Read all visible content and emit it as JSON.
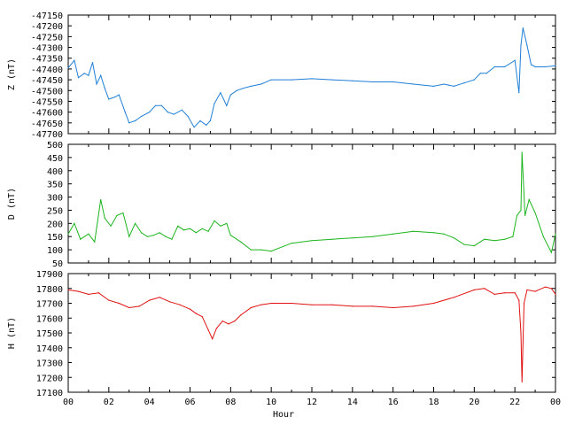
{
  "chart_data": {
    "type": "line",
    "xlabel": "Hour",
    "xlim": [
      0,
      24
    ],
    "x_ticks": [
      "00",
      "02",
      "04",
      "06",
      "08",
      "10",
      "12",
      "14",
      "16",
      "18",
      "20",
      "22",
      "00"
    ],
    "panels": [
      {
        "id": "z",
        "ylabel": "Z (nT)",
        "ylim": [
          -47700,
          -47150
        ],
        "yticks": [
          -47700,
          -47650,
          -47600,
          -47550,
          -47500,
          -47450,
          -47400,
          -47350,
          -47300,
          -47250,
          -47200,
          -47150
        ],
        "color": "#1f7fd6",
        "x": [
          0,
          0.3,
          0.5,
          0.8,
          1.0,
          1.2,
          1.4,
          1.6,
          1.8,
          2.0,
          2.3,
          2.5,
          2.8,
          3.0,
          3.3,
          3.6,
          4.0,
          4.3,
          4.6,
          4.9,
          5.2,
          5.6,
          5.9,
          6.2,
          6.5,
          6.8,
          7.0,
          7.2,
          7.5,
          7.8,
          8.0,
          8.3,
          8.6,
          9.0,
          9.5,
          10.0,
          11.0,
          12.0,
          13.0,
          14.0,
          15.0,
          16.0,
          17.0,
          18.0,
          18.5,
          19.0,
          19.5,
          20.0,
          20.3,
          20.6,
          21.0,
          21.5,
          22.0,
          22.2,
          22.3,
          22.4,
          22.6,
          22.8,
          23.0,
          23.5,
          24.0
        ],
        "values": [
          -47395,
          -47360,
          -47440,
          -47420,
          -47430,
          -47370,
          -47470,
          -47430,
          -47490,
          -47540,
          -47530,
          -47520,
          -47600,
          -47650,
          -47640,
          -47620,
          -47600,
          -47570,
          -47570,
          -47600,
          -47610,
          -47590,
          -47620,
          -47670,
          -47640,
          -47660,
          -47640,
          -47560,
          -47510,
          -47570,
          -47520,
          -47500,
          -47490,
          -47480,
          -47470,
          -47450,
          -47450,
          -47445,
          -47450,
          -47455,
          -47460,
          -47460,
          -47470,
          -47480,
          -47470,
          -47480,
          -47465,
          -47450,
          -47420,
          -47420,
          -47390,
          -47390,
          -47360,
          -47510,
          -47290,
          -47210,
          -47290,
          -47380,
          -47390,
          -47390,
          -47385
        ]
      },
      {
        "id": "d",
        "ylabel": "D (nT)",
        "ylim": [
          50,
          500
        ],
        "yticks": [
          50,
          100,
          150,
          200,
          250,
          300,
          350,
          400,
          450,
          500
        ],
        "color": "#1db41d",
        "x": [
          0,
          0.3,
          0.6,
          1.0,
          1.3,
          1.6,
          1.8,
          2.1,
          2.4,
          2.7,
          3.0,
          3.3,
          3.6,
          3.9,
          4.2,
          4.5,
          4.8,
          5.1,
          5.4,
          5.7,
          6.0,
          6.3,
          6.6,
          6.9,
          7.2,
          7.5,
          7.8,
          8.0,
          8.5,
          9.0,
          9.5,
          10.0,
          11.0,
          12.0,
          13.0,
          14.0,
          15.0,
          16.0,
          17.0,
          18.0,
          18.5,
          19.0,
          19.5,
          20.0,
          20.5,
          21.0,
          21.5,
          21.9,
          22.1,
          22.3,
          22.35,
          22.5,
          22.7,
          23.0,
          23.4,
          23.8,
          24.0
        ],
        "values": [
          160,
          200,
          140,
          160,
          130,
          290,
          220,
          190,
          230,
          240,
          150,
          200,
          165,
          150,
          155,
          165,
          150,
          140,
          190,
          175,
          180,
          165,
          180,
          170,
          210,
          190,
          200,
          155,
          130,
          100,
          100,
          95,
          125,
          135,
          140,
          145,
          150,
          160,
          170,
          165,
          160,
          145,
          120,
          115,
          140,
          135,
          140,
          150,
          230,
          250,
          470,
          230,
          290,
          240,
          150,
          90,
          160
        ]
      },
      {
        "id": "h",
        "ylabel": "H (nT)",
        "ylim": [
          17100,
          17900
        ],
        "yticks": [
          17100,
          17200,
          17300,
          17400,
          17500,
          17600,
          17700,
          17800,
          17900
        ],
        "color": "#e01010",
        "x": [
          0,
          0.5,
          1.0,
          1.5,
          2.0,
          2.5,
          3.0,
          3.5,
          4.0,
          4.5,
          5.0,
          5.5,
          6.0,
          6.3,
          6.6,
          6.9,
          7.1,
          7.3,
          7.6,
          7.9,
          8.2,
          8.5,
          9.0,
          9.5,
          10.0,
          11.0,
          12.0,
          13.0,
          14.0,
          15.0,
          16.0,
          17.0,
          18.0,
          19.0,
          20.0,
          20.5,
          21.0,
          21.5,
          22.0,
          22.2,
          22.3,
          22.35,
          22.45,
          22.6,
          23.0,
          23.5,
          23.8,
          24.0
        ],
        "values": [
          17790,
          17780,
          17760,
          17770,
          17720,
          17700,
          17670,
          17680,
          17720,
          17740,
          17710,
          17690,
          17660,
          17630,
          17610,
          17520,
          17460,
          17530,
          17580,
          17560,
          17580,
          17620,
          17670,
          17690,
          17700,
          17700,
          17690,
          17690,
          17680,
          17680,
          17670,
          17680,
          17700,
          17740,
          17790,
          17800,
          17760,
          17770,
          17770,
          17720,
          17500,
          17170,
          17700,
          17790,
          17780,
          17810,
          17800,
          17760
        ]
      }
    ]
  }
}
